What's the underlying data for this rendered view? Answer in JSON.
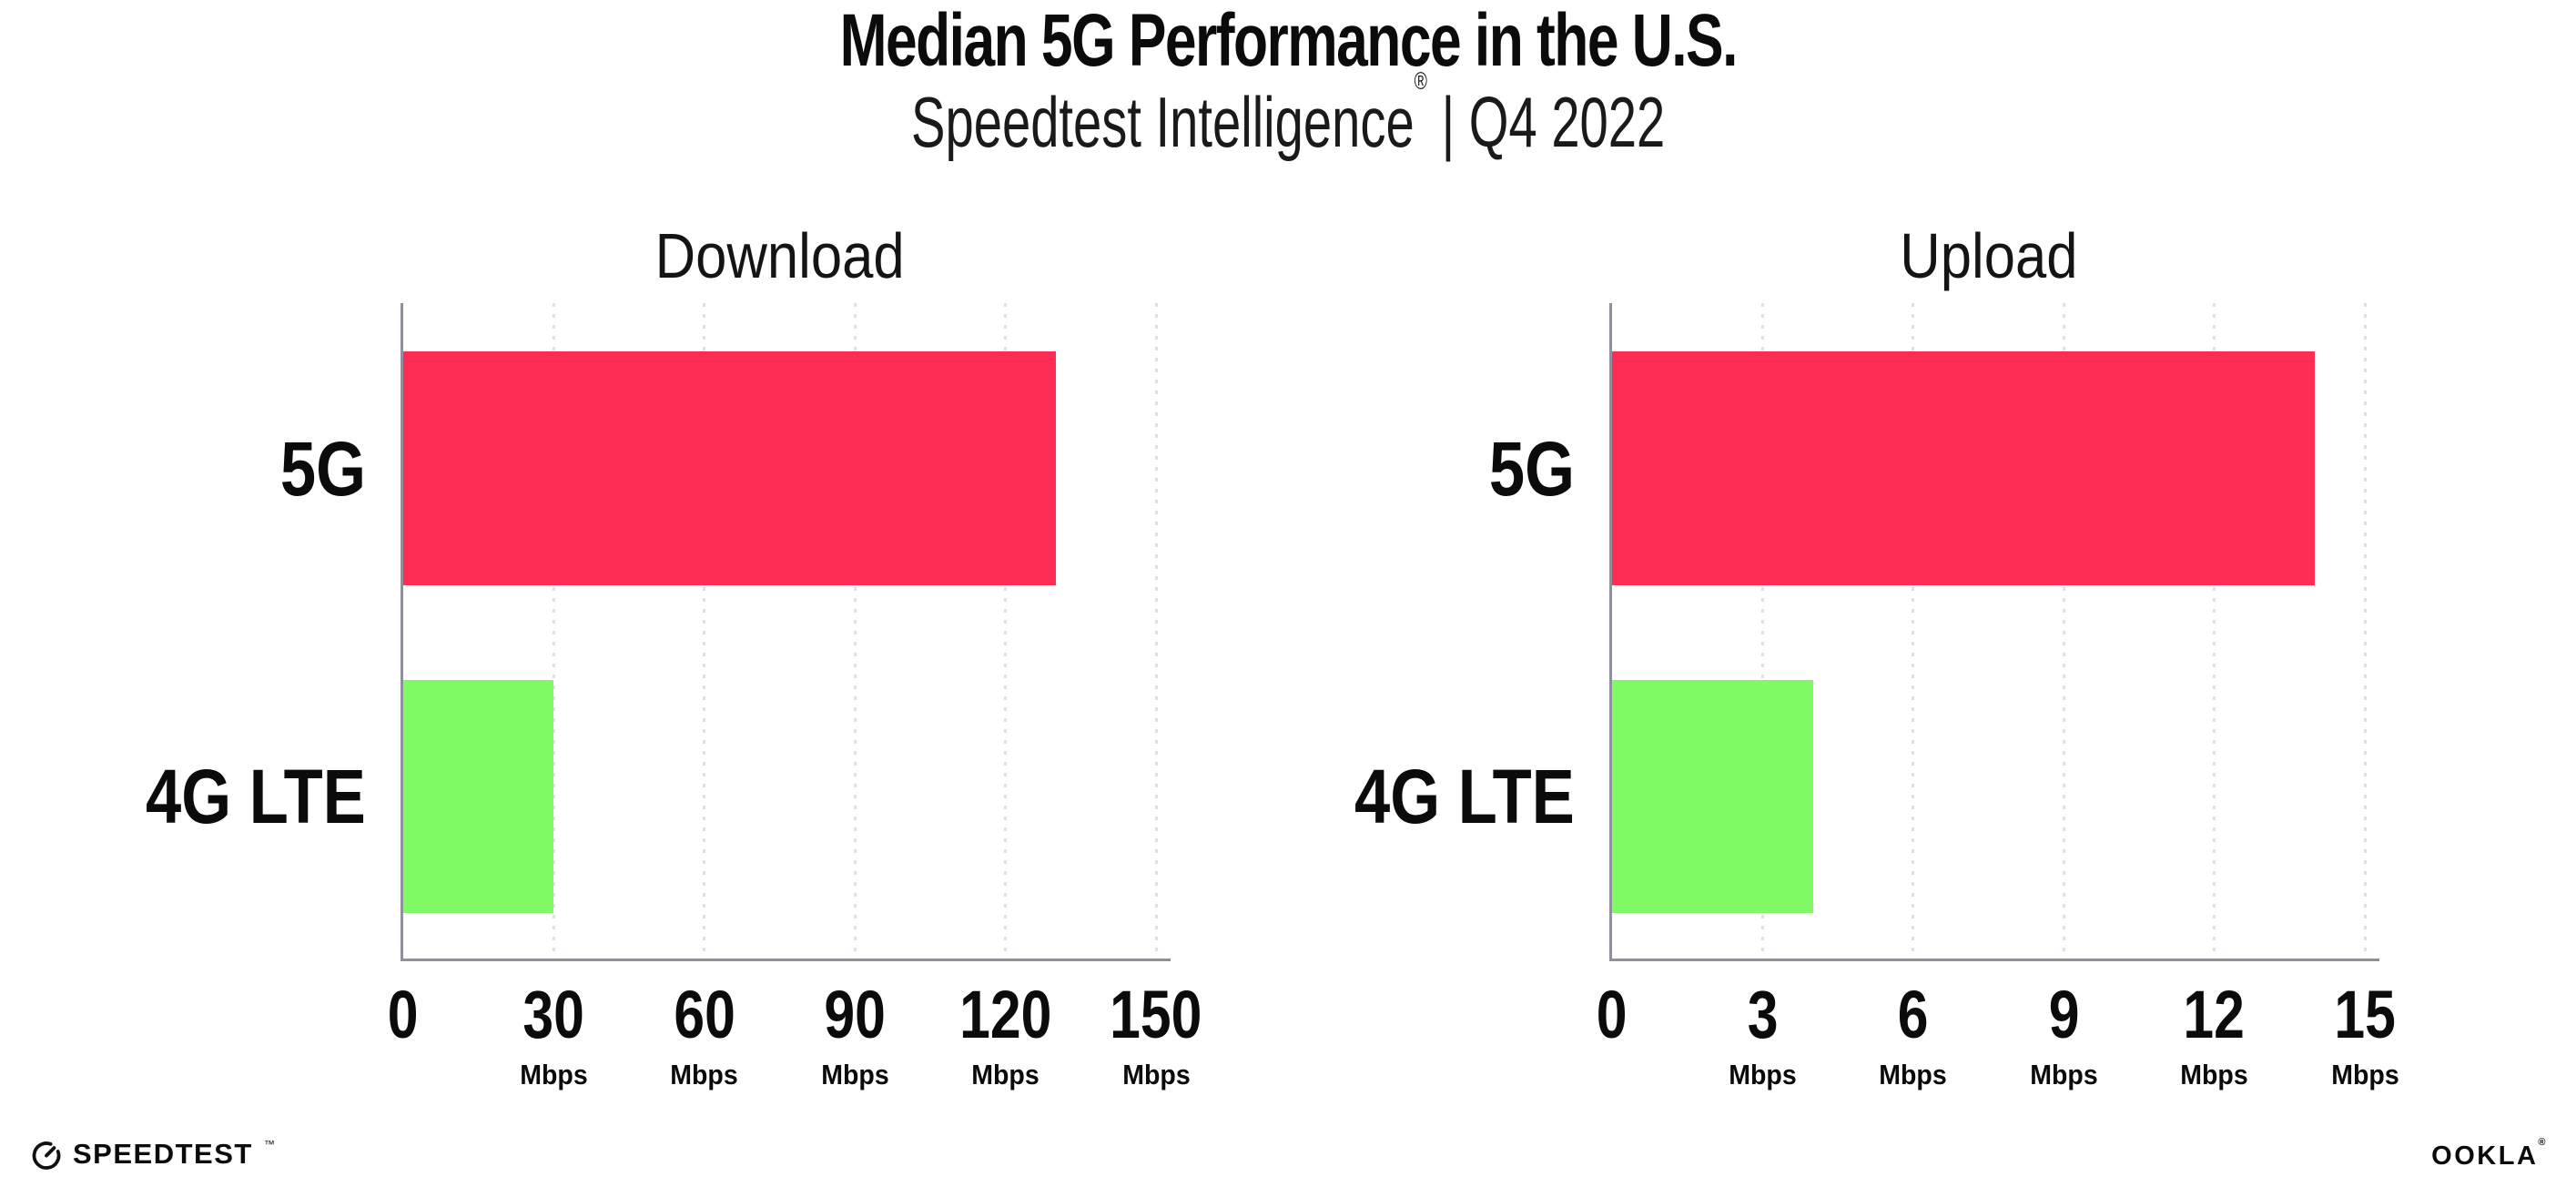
{
  "header": {
    "title": "Median 5G Performance in the U.S.",
    "subtitle_brand": "Speedtest Intelligence",
    "subtitle_registered": "®",
    "subtitle_rest": " | Q4 2022"
  },
  "chart_data": [
    {
      "type": "bar",
      "orientation": "horizontal",
      "title": "Download",
      "categories": [
        "5G",
        "4G LTE"
      ],
      "values": [
        130,
        30
      ],
      "unit": "Mbps",
      "xlim": [
        0,
        150
      ],
      "xticks": [
        0,
        30,
        60,
        90,
        120,
        150
      ],
      "xtick_unit": "Mbps",
      "grid": "dotted-vertical",
      "legend": "none",
      "bar_colors": [
        "#FD2D55",
        "#7FFA64"
      ]
    },
    {
      "type": "bar",
      "orientation": "horizontal",
      "title": "Upload",
      "categories": [
        "5G",
        "4G LTE"
      ],
      "values": [
        14,
        4
      ],
      "unit": "Mbps",
      "xlim": [
        0,
        15
      ],
      "xticks": [
        0,
        3,
        6,
        9,
        12,
        15
      ],
      "xtick_unit": "Mbps",
      "grid": "dotted-vertical",
      "legend": "none",
      "bar_colors": [
        "#FD2D55",
        "#7FFA64"
      ]
    }
  ],
  "footer": {
    "speedtest_label": "SPEEDTEST",
    "speedtest_tm": "™",
    "ookla_label": "OOKLA",
    "ookla_registered": "®"
  },
  "colors": {
    "bar_5g": "#FD2D55",
    "bar_4g_lte": "#7FFA64",
    "gridline": "#DFDFEA",
    "axis": "#90909A",
    "text": "#0B0B0B"
  }
}
